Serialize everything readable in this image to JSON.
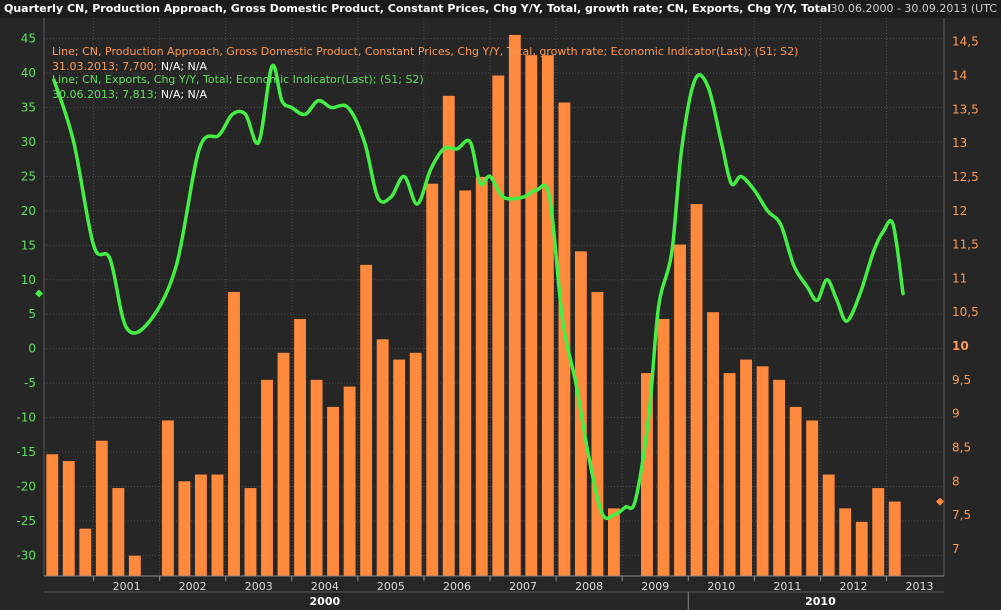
{
  "header": {
    "title": "Quarterly CN, Production Approach, Gross Domestic Product, Constant Prices, Chg Y/Y, Total, growth rate; CN, Exports, Chg Y/Y, Total",
    "date_range": "30.06.2000 - 30.09.2013 (UTC"
  },
  "legend": {
    "gdp_line1": "Line; CN, Production Approach, Gross Domestic Product, Constant Prices, Chg Y/Y, Total, growth rate; Economic Indicator(Last); (S1; S2)",
    "gdp_line2_colored": "31.03.2013; 7,700;",
    "gdp_line2_rest": " N/A; N/A",
    "exp_line1": "Line; CN, Exports, Chg Y/Y, Total; Economic Indicator(Last); (S1; S2)",
    "exp_line2_colored": "30.06.2013; 7,813;",
    "exp_line2_rest": " N/A; N/A"
  },
  "colors": {
    "gdp_bar": "#ff8a3d",
    "exports_line": "#44ee44",
    "left_axis": "#5ee05e",
    "right_axis": "#ff9a55",
    "grid": "#4a4a4a"
  },
  "chart_data": {
    "type": "bar",
    "left_axis": {
      "label": "",
      "range": [
        -33,
        48
      ],
      "ticks": [
        45,
        40,
        35,
        30,
        25,
        20,
        15,
        10,
        5,
        0,
        -5,
        -10,
        -15,
        -20,
        -25,
        -30
      ],
      "tick_labels": [
        "45",
        "40",
        "35",
        "30",
        "25",
        "20",
        "15",
        "10",
        "5",
        "0",
        "-5",
        "-10",
        "-15",
        "-20",
        "-25",
        "-30"
      ]
    },
    "right_axis": {
      "label": "",
      "range": [
        6.6,
        14.85
      ],
      "ticks": [
        14.5,
        14,
        13.5,
        13,
        12.5,
        12,
        11.5,
        11,
        10.5,
        10,
        9.5,
        9,
        8.5,
        8,
        7.5,
        7
      ],
      "tick_labels": [
        "14,5",
        "14",
        "13,5",
        "13",
        "12,5",
        "12",
        "11,5",
        "11",
        "10,5",
        "10",
        "9,5",
        "9",
        "8,5",
        "8",
        "7,5",
        "7"
      ]
    },
    "year_labels": [
      "2001",
      "2002",
      "2003",
      "2004",
      "2005",
      "2006",
      "2007",
      "2008",
      "2009",
      "2010",
      "2011",
      "2012",
      "2013"
    ],
    "decade_labels": [
      "2000",
      "2010"
    ],
    "grid": true,
    "series": [
      {
        "name": "CN, Production Approach, Gross Domestic Product, Constant Prices, Chg Y/Y, Total, growth rate",
        "type": "bar",
        "axis": "right",
        "x": [
          "2000Q2",
          "2000Q3",
          "2000Q4",
          "2001Q1",
          "2001Q2",
          "2001Q3",
          "2001Q4",
          "2002Q1",
          "2002Q2",
          "2002Q3",
          "2002Q4",
          "2003Q1",
          "2003Q2",
          "2003Q3",
          "2003Q4",
          "2004Q1",
          "2004Q2",
          "2004Q3",
          "2004Q4",
          "2005Q1",
          "2005Q2",
          "2005Q3",
          "2005Q4",
          "2006Q1",
          "2006Q2",
          "2006Q3",
          "2006Q4",
          "2007Q1",
          "2007Q2",
          "2007Q3",
          "2007Q4",
          "2008Q1",
          "2008Q2",
          "2008Q3",
          "2008Q4",
          "2009Q1",
          "2009Q2",
          "2009Q3",
          "2009Q4",
          "2010Q1",
          "2010Q2",
          "2010Q3",
          "2010Q4",
          "2011Q1",
          "2011Q2",
          "2011Q3",
          "2011Q4",
          "2012Q1",
          "2012Q2",
          "2012Q3",
          "2012Q4",
          "2013Q1"
        ],
        "values": [
          8.4,
          8.3,
          7.3,
          8.6,
          7.9,
          6.9,
          6.6,
          8.9,
          8.0,
          8.1,
          8.1,
          10.8,
          7.9,
          9.5,
          9.9,
          10.4,
          9.5,
          9.1,
          9.4,
          11.2,
          10.1,
          9.8,
          9.9,
          12.4,
          13.7,
          12.3,
          12.5,
          14.0,
          14.6,
          14.3,
          14.3,
          13.6,
          11.4,
          10.8,
          7.6,
          6.6,
          9.6,
          10.4,
          11.5,
          12.1,
          10.5,
          9.6,
          9.8,
          9.7,
          9.5,
          9.1,
          8.9,
          8.1,
          7.6,
          7.4,
          7.9,
          7.7
        ]
      },
      {
        "name": "CN, Exports, Chg Y/Y, Total",
        "type": "line",
        "axis": "left",
        "x": [
          2000.4,
          2000.7,
          2001.0,
          2001.25,
          2001.5,
          2001.85,
          2002.25,
          2002.6,
          2002.9,
          2003.1,
          2003.3,
          2003.5,
          2003.7,
          2003.85,
          2004.0,
          2004.2,
          2004.4,
          2004.6,
          2004.85,
          2005.1,
          2005.3,
          2005.5,
          2005.7,
          2005.9,
          2006.1,
          2006.3,
          2006.5,
          2006.7,
          2006.85,
          2007.0,
          2007.2,
          2007.5,
          2007.7,
          2007.9,
          2008.1,
          2008.3,
          2008.5,
          2008.7,
          2008.9,
          2009.05,
          2009.2,
          2009.4,
          2009.55,
          2009.75,
          2009.9,
          2010.1,
          2010.3,
          2010.5,
          2010.65,
          2010.8,
          2011.0,
          2011.2,
          2011.4,
          2011.6,
          2011.8,
          2011.95,
          2012.1,
          2012.25,
          2012.4,
          2012.6,
          2012.8,
          2012.95,
          2013.1,
          2013.25
        ],
        "values": [
          39,
          30,
          15,
          13,
          3,
          4,
          12,
          29,
          31,
          34,
          34,
          30,
          41,
          36,
          35,
          34,
          36,
          35,
          35,
          30,
          22,
          22,
          25,
          21,
          26,
          29,
          29,
          30,
          24,
          25,
          22,
          22,
          23,
          22,
          4,
          -5,
          -16,
          -24,
          -24,
          -23,
          -22,
          -10,
          6,
          14,
          29,
          39,
          38,
          30,
          24,
          25,
          23,
          20,
          18,
          12,
          9,
          7,
          10,
          7,
          4,
          8,
          14,
          17,
          18,
          8
        ]
      }
    ]
  }
}
